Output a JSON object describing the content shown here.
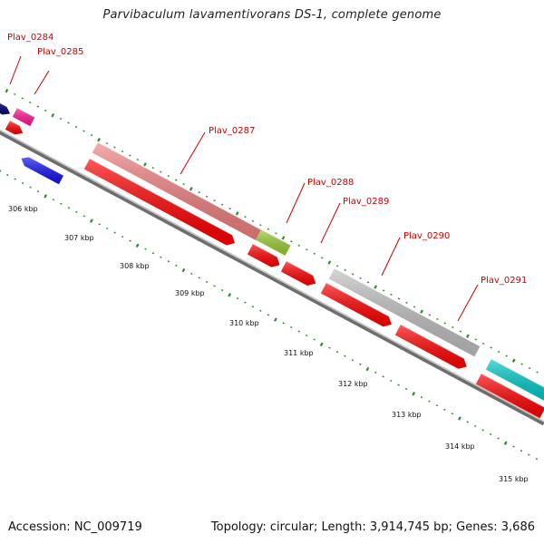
{
  "title": "Parvibaculum lavamentivorans DS-1, complete genome",
  "footer": {
    "accession": "Accession: NC_009719",
    "summary": "Topology: circular; Length: 3,914,745 bp; Genes: 3,686"
  },
  "colors": {
    "genome_line": "#8c8c8c",
    "tick_color": "#2e8b2e",
    "label_color": "#cc0000",
    "cds_red": "#ff0000"
  },
  "tick_labels": [
    "306 kbp",
    "307 kbp",
    "308 kbp",
    "309 kbp",
    "310 kbp",
    "311 kbp",
    "312 kbp",
    "313 kbp",
    "314 kbp",
    "315 kbp"
  ],
  "gene_labels": [
    "Plav_0284",
    "Plav_0285",
    "Plav_0287",
    "Plav_0288",
    "Plav_0289",
    "Plav_0290",
    "Plav_0291"
  ]
}
